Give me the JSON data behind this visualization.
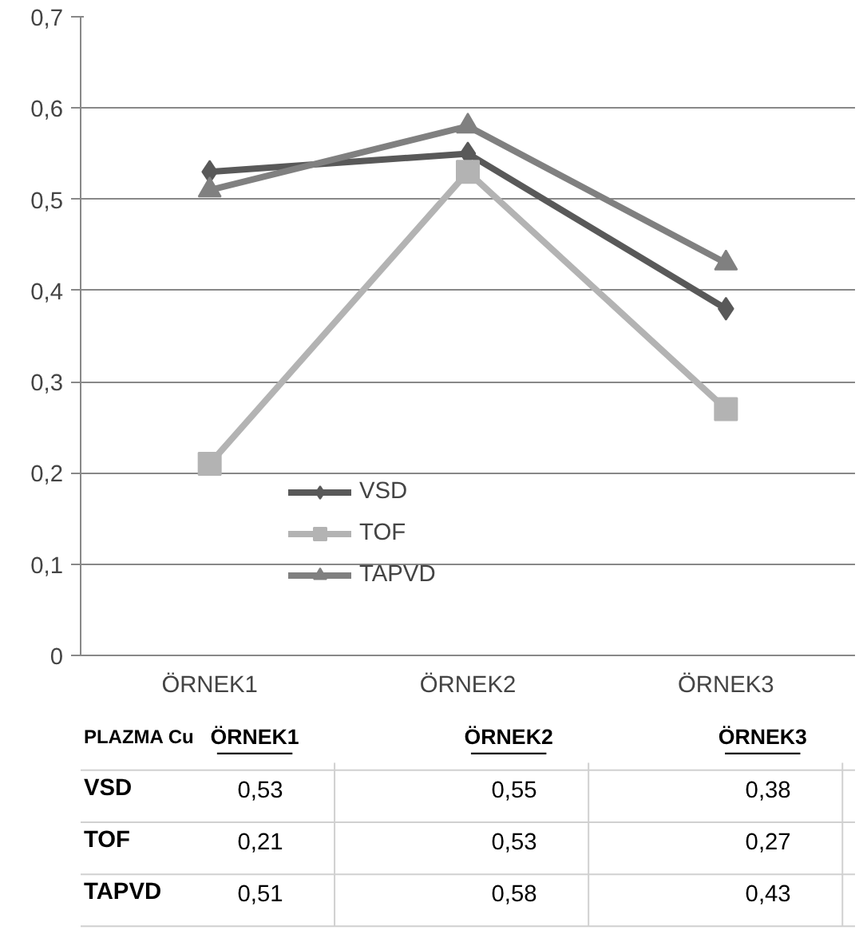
{
  "chart_data": {
    "type": "line",
    "categories": [
      "ÖRNEK1",
      "ÖRNEK2",
      "ÖRNEK3"
    ],
    "series": [
      {
        "name": "VSD",
        "color": "#595959",
        "marker": "diamond",
        "values": [
          0.53,
          0.55,
          0.38
        ],
        "value_labels": [
          "0,53",
          "0,55",
          "0,38"
        ]
      },
      {
        "name": "TOF",
        "color": "#b3b3b3",
        "marker": "square",
        "values": [
          0.21,
          0.53,
          0.27
        ],
        "value_labels": [
          "0,21",
          "0,53",
          "0,27"
        ]
      },
      {
        "name": "TAPVD",
        "color": "#808080",
        "marker": "triangle",
        "values": [
          0.51,
          0.58,
          0.43
        ],
        "value_labels": [
          "0,51",
          "0,58",
          "0,43"
        ]
      }
    ],
    "ylim": [
      0,
      0.7
    ],
    "yticks": [
      {
        "value": 0,
        "label": "0"
      },
      {
        "value": 0.1,
        "label": "0,1"
      },
      {
        "value": 0.2,
        "label": "0,2"
      },
      {
        "value": 0.3,
        "label": "0,3"
      },
      {
        "value": 0.4,
        "label": "0,4"
      },
      {
        "value": 0.5,
        "label": "0,5"
      },
      {
        "value": 0.6,
        "label": "0,6"
      },
      {
        "value": 0.7,
        "label": "0,7"
      }
    ],
    "grid": "y",
    "legend": "bottom",
    "line_style": "solid",
    "annotations": [
      "PLAZMA Cu"
    ]
  }
}
